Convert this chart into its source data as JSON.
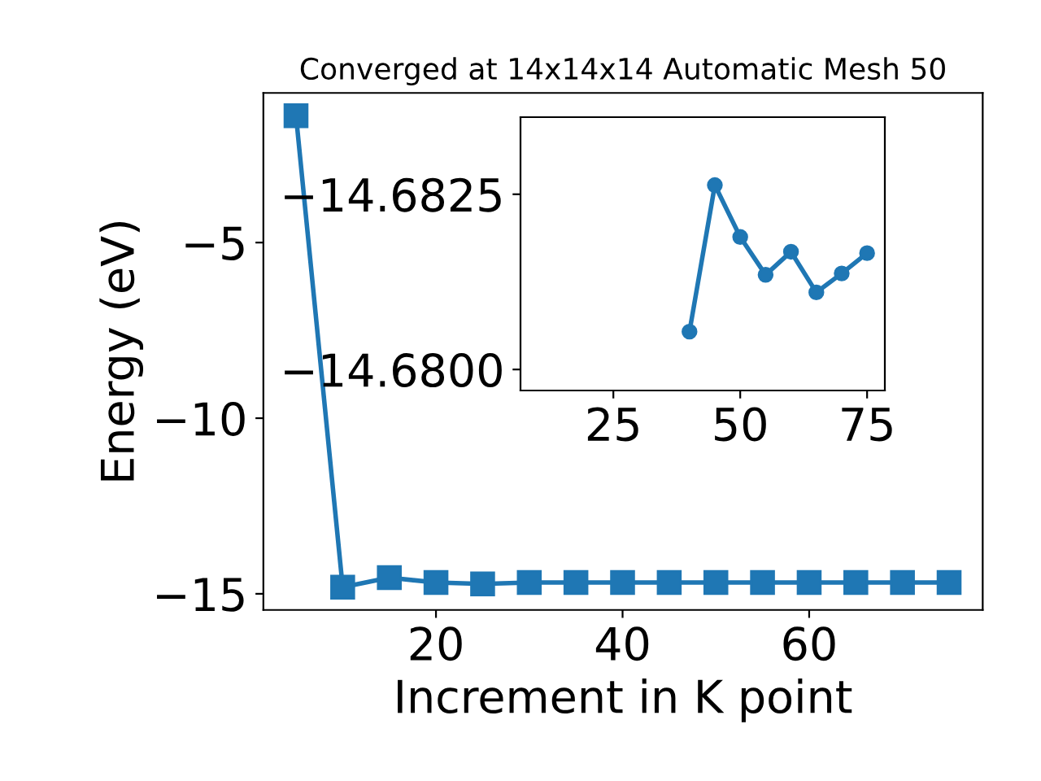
{
  "chart_data": [
    {
      "type": "line",
      "title": "Converged at 14x14x14 Automatic Mesh 50",
      "xlabel": "Increment in K point",
      "ylabel": "Energy (eV)",
      "x": [
        5,
        10,
        15,
        20,
        25,
        30,
        35,
        40,
        45,
        50,
        55,
        60,
        65,
        70,
        75
      ],
      "series": [
        {
          "color": "#1f77b4",
          "values": [
            -1.39,
            -14.81,
            -14.54,
            -14.68,
            -14.72,
            -14.68,
            -14.68,
            -14.68,
            -14.68,
            -14.68,
            -14.68,
            -14.68,
            -14.68,
            -14.68,
            -14.68
          ]
        }
      ],
      "xlim": [
        1.5,
        78.6
      ],
      "ylim": [
        -15.46,
        -0.74
      ],
      "xticks": [
        20,
        40,
        60
      ],
      "yticks": [
        {
          "value": -15,
          "label": "−15"
        },
        {
          "value": -10,
          "label": "−10"
        },
        {
          "value": -5,
          "label": "−5"
        }
      ],
      "marker": "square",
      "grid": false,
      "legend": false
    },
    {
      "type": "line",
      "x": [
        40,
        45,
        50,
        55,
        60,
        65,
        70,
        75
      ],
      "series": [
        {
          "color": "#1f77b4",
          "values": [
            -14.68054,
            -14.68263,
            -14.68189,
            -14.68135,
            -14.68168,
            -14.6811,
            -14.68137,
            -14.68166
          ]
        }
      ],
      "xlim": [
        6.7,
        78.5
      ],
      "ylim": [
        -14.6797,
        -14.6836
      ],
      "xticks": [
        25,
        50,
        75
      ],
      "yticks": [
        {
          "value": -14.6825,
          "label": "−14.6825"
        },
        {
          "value": -14.68,
          "label": "−14.6800"
        }
      ],
      "marker": "circle",
      "grid": false,
      "legend": false
    }
  ]
}
